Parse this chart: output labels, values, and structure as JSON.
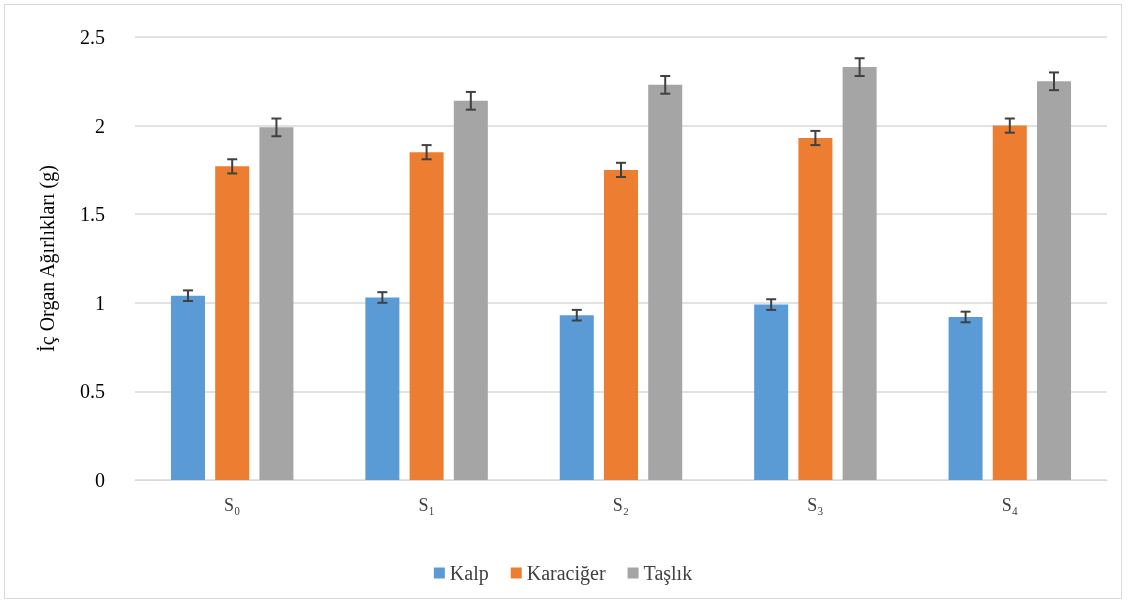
{
  "chart_data": {
    "type": "bar",
    "ylabel": "İç Organ Ağırlıkları (g)",
    "categories": [
      "S₀",
      "S₁",
      "S₂",
      "S₃",
      "S₄"
    ],
    "series": [
      {
        "name": "Kalp",
        "color": "#5b9bd5",
        "values": [
          1.04,
          1.03,
          0.93,
          0.99,
          0.92
        ],
        "errors": [
          0.03,
          0.03,
          0.03,
          0.03,
          0.03
        ]
      },
      {
        "name": "Karaciğer",
        "color": "#ed7d31",
        "values": [
          1.77,
          1.85,
          1.75,
          1.93,
          2.0
        ],
        "errors": [
          0.04,
          0.04,
          0.04,
          0.04,
          0.04
        ]
      },
      {
        "name": "Taşlık",
        "color": "#a5a5a5",
        "values": [
          1.99,
          2.14,
          2.23,
          2.33,
          2.25
        ],
        "errors": [
          0.05,
          0.05,
          0.05,
          0.05,
          0.05
        ]
      }
    ],
    "ylim": [
      0,
      2.5
    ],
    "yticks": [
      0,
      0.5,
      1,
      1.5,
      2,
      2.5
    ],
    "grid": "y",
    "legend": "bottom"
  }
}
